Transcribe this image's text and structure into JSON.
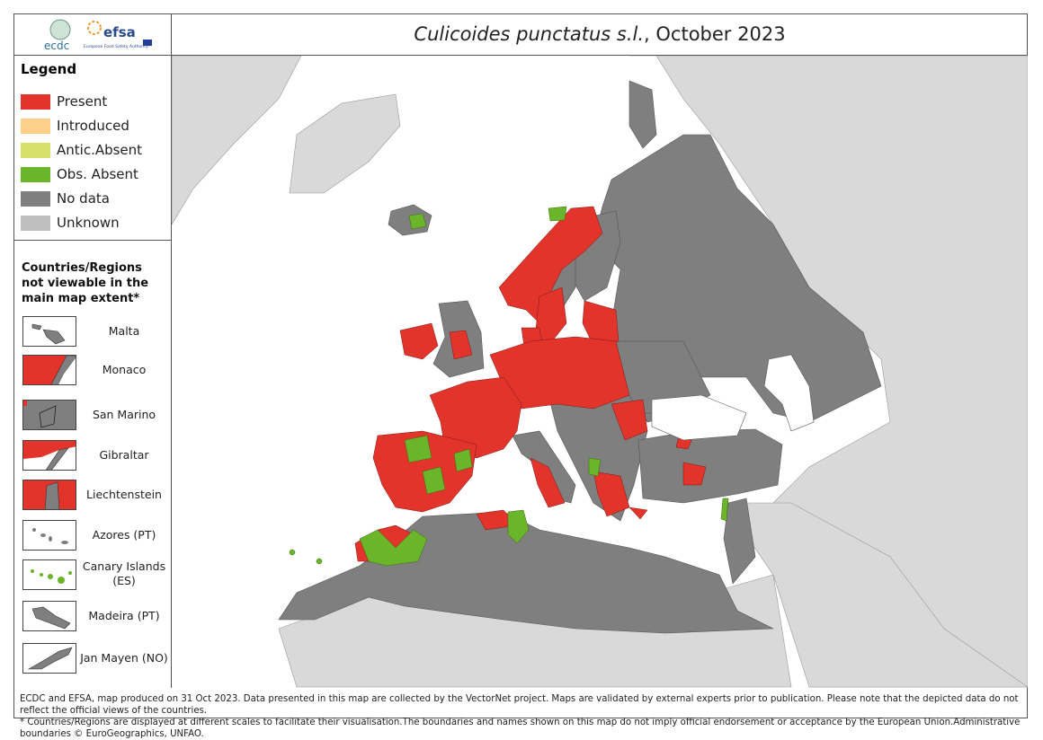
{
  "header": {
    "logos": [
      "ecdc",
      "efsa",
      "European Food Safety Authority"
    ],
    "title": {
      "species": "Culicoides punctatus s.l.",
      "date": ", October 2023"
    }
  },
  "legend": {
    "title": "Legend",
    "items": [
      {
        "label": "Present",
        "color": "#e3342b"
      },
      {
        "label": "Introduced",
        "color": "#fdd08a"
      },
      {
        "label": "Antic.Absent",
        "color": "#d6e06a"
      },
      {
        "label": "Obs. Absent",
        "color": "#6ab52a"
      },
      {
        "label": "No data",
        "color": "#7f7f7f"
      },
      {
        "label": "Unknown",
        "color": "#bfbfbf"
      }
    ]
  },
  "insets": {
    "title": "Countries/Regions not viewable in the main map extent*",
    "items": [
      "Malta",
      "Monaco",
      "San Marino",
      "Gibraltar",
      "Liechtenstein",
      "Azores (PT)",
      "Canary Islands (ES)",
      "Madeira (PT)",
      "Jan Mayen (NO)"
    ]
  },
  "footer": [
    "ECDC and EFSA, map produced on 31 Oct 2023. Data presented in this map are collected by the VectorNet project. Maps are validated by external experts prior to publication. Please note that the depicted data do not reflect the official views of the countries.",
    "* Countries/Regions are displayed at different scales to facilitate their visualisation.The boundaries and names shown on this map do not imply official endorsement or acceptance by the European Union.Administrative boundaries © EuroGeographics, UNFAO."
  ]
}
